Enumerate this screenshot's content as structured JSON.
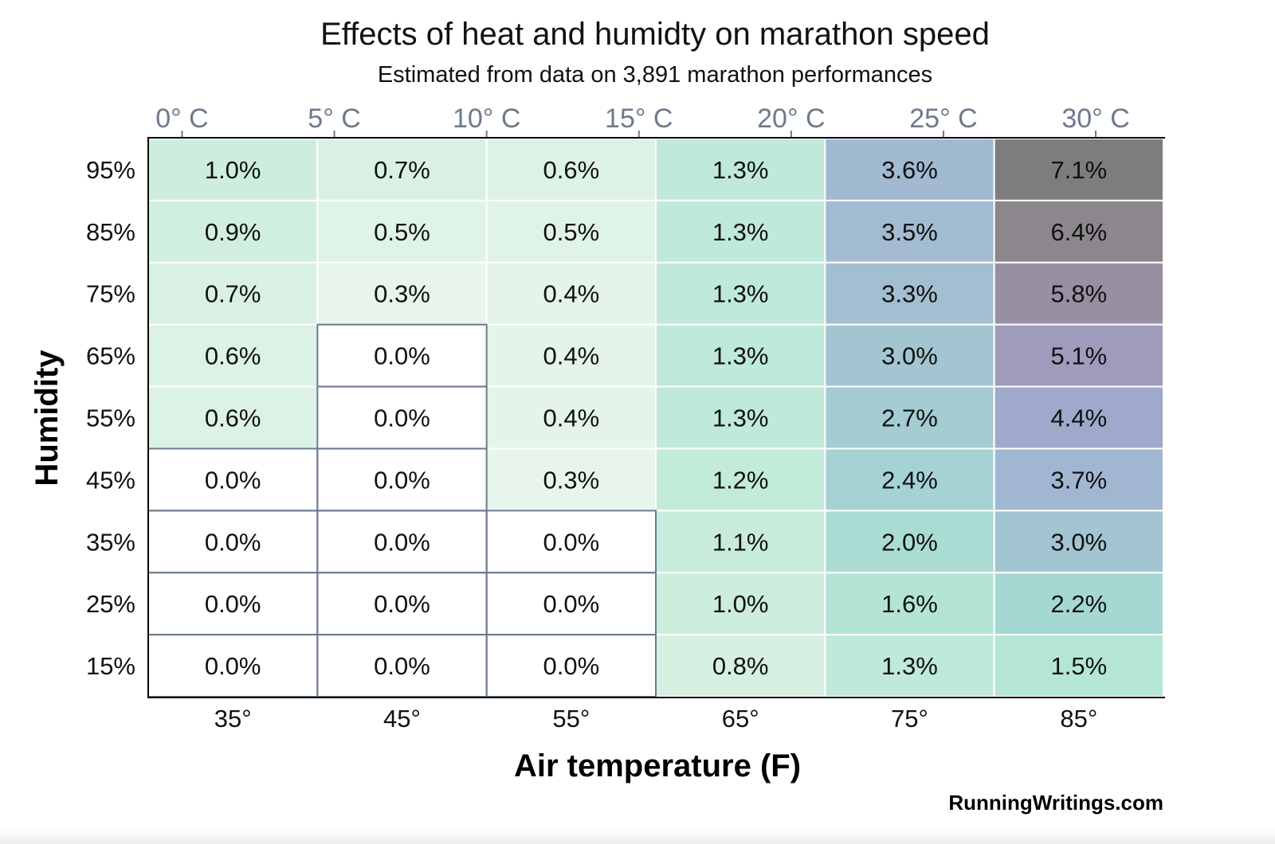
{
  "chart_data": {
    "type": "heatmap",
    "title": "Effects of heat and humidty on marathon speed",
    "subtitle": "Estimated from data on 3,891 marathon performances",
    "xlabel": "Air temperature (F)",
    "ylabel": "Humidity",
    "x_categories": [
      "35°",
      "45°",
      "55°",
      "65°",
      "75°",
      "85°"
    ],
    "x_values_f": [
      35,
      45,
      55,
      65,
      75,
      85
    ],
    "secondary_x_ticks": [
      {
        "label": "0° C",
        "celsius": 0
      },
      {
        "label": "5° C",
        "celsius": 5
      },
      {
        "label": "10° C",
        "celsius": 10
      },
      {
        "label": "15° C",
        "celsius": 15
      },
      {
        "label": "20° C",
        "celsius": 20
      },
      {
        "label": "25° C",
        "celsius": 25
      },
      {
        "label": "30° C",
        "celsius": 30
      }
    ],
    "y_categories": [
      "95%",
      "85%",
      "75%",
      "65%",
      "55%",
      "45%",
      "35%",
      "25%",
      "15%"
    ],
    "values": [
      [
        1.0,
        0.7,
        0.6,
        1.3,
        3.6,
        7.1
      ],
      [
        0.9,
        0.5,
        0.5,
        1.3,
        3.5,
        6.4
      ],
      [
        0.7,
        0.3,
        0.4,
        1.3,
        3.3,
        5.8
      ],
      [
        0.6,
        0.0,
        0.4,
        1.3,
        3.0,
        5.1
      ],
      [
        0.6,
        0.0,
        0.4,
        1.3,
        2.7,
        4.4
      ],
      [
        0.0,
        0.0,
        0.3,
        1.2,
        2.4,
        3.7
      ],
      [
        0.0,
        0.0,
        0.0,
        1.1,
        2.0,
        3.0
      ],
      [
        0.0,
        0.0,
        0.0,
        1.0,
        1.6,
        2.2
      ],
      [
        0.0,
        0.0,
        0.0,
        0.8,
        1.3,
        1.5
      ]
    ],
    "labels": [
      [
        "1.0%",
        "0.7%",
        "0.6%",
        "1.3%",
        "3.6%",
        "7.1%"
      ],
      [
        "0.9%",
        "0.5%",
        "0.5%",
        "1.3%",
        "3.5%",
        "6.4%"
      ],
      [
        "0.7%",
        "0.3%",
        "0.4%",
        "1.3%",
        "3.3%",
        "5.8%"
      ],
      [
        "0.6%",
        "0.0%",
        "0.4%",
        "1.3%",
        "3.0%",
        "5.1%"
      ],
      [
        "0.6%",
        "0.0%",
        "0.4%",
        "1.3%",
        "2.7%",
        "4.4%"
      ],
      [
        "0.0%",
        "0.0%",
        "0.3%",
        "1.2%",
        "2.4%",
        "3.7%"
      ],
      [
        "0.0%",
        "0.0%",
        "0.0%",
        "1.1%",
        "2.0%",
        "3.0%"
      ],
      [
        "0.0%",
        "0.0%",
        "0.0%",
        "1.0%",
        "1.6%",
        "2.2%"
      ],
      [
        "0.0%",
        "0.0%",
        "0.0%",
        "0.8%",
        "1.3%",
        "1.5%"
      ]
    ],
    "color_scale": {
      "zero_fill": "#ffffff",
      "zero_border": "#6b7a8c",
      "stops": [
        {
          "v": 0.3,
          "color": "#e8f5ec"
        },
        {
          "v": 1.0,
          "color": "#cdeedd"
        },
        {
          "v": 1.5,
          "color": "#b5e6d5"
        },
        {
          "v": 2.2,
          "color": "#a6d8d3"
        },
        {
          "v": 3.0,
          "color": "#a3c5d1"
        },
        {
          "v": 3.7,
          "color": "#a1b7d1"
        },
        {
          "v": 4.4,
          "color": "#9ea9cb"
        },
        {
          "v": 5.1,
          "color": "#9e9bbb"
        },
        {
          "v": 5.8,
          "color": "#9890a2"
        },
        {
          "v": 6.4,
          "color": "#8b878c"
        },
        {
          "v": 7.1,
          "color": "#7d7d7d"
        }
      ]
    },
    "grid": false,
    "legend": "none"
  },
  "credit": "RunningWritings.com"
}
